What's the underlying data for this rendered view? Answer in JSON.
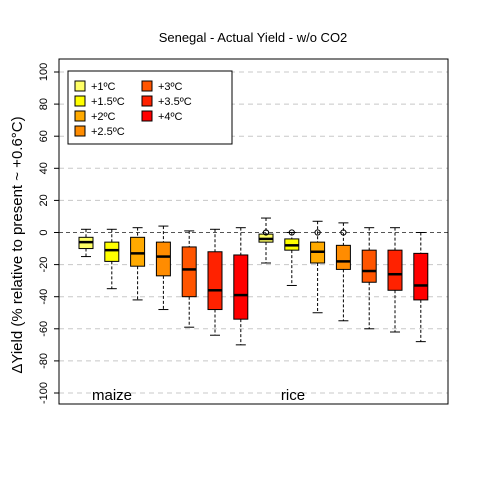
{
  "chart_data": {
    "type": "box",
    "title": "Senegal - Actual Yield - w/o CO2",
    "ylabel": "ΔYield (% relative to present ~ +0.6°C)",
    "xlabel": "",
    "ylim": [
      -100,
      100
    ],
    "yticks": [
      100,
      80,
      60,
      40,
      20,
      0,
      -20,
      -40,
      -60,
      -80,
      -100
    ],
    "grid": "horizontal dashed",
    "legend_position": "top-left",
    "groups": [
      "maize",
      "rice"
    ],
    "series": [
      {
        "name": "+1ºC",
        "color": "#FFFF66"
      },
      {
        "name": "+1.5ºC",
        "color": "#FFFF00"
      },
      {
        "name": "+2ºC",
        "color": "#FFAA00"
      },
      {
        "name": "+2.5ºC",
        "color": "#FF8C00"
      },
      {
        "name": "+3ºC",
        "color": "#FF5500"
      },
      {
        "name": "+3.5ºC",
        "color": "#FF2200"
      },
      {
        "name": "+4ºC",
        "color": "#FF0000"
      }
    ],
    "boxes": [
      {
        "group": "maize",
        "series": "+1ºC",
        "whisker_low": -15,
        "q1": -10,
        "median": -6,
        "q3": -3,
        "whisker_high": 2,
        "outliers": []
      },
      {
        "group": "maize",
        "series": "+1.5ºC",
        "whisker_low": -35,
        "q1": -18,
        "median": -11,
        "q3": -6,
        "whisker_high": 2,
        "outliers": []
      },
      {
        "group": "maize",
        "series": "+2ºC",
        "whisker_low": -42,
        "q1": -21,
        "median": -13,
        "q3": -3,
        "whisker_high": 3,
        "outliers": []
      },
      {
        "group": "maize",
        "series": "+2.5ºC",
        "whisker_low": -48,
        "q1": -27,
        "median": -15,
        "q3": -6,
        "whisker_high": 4,
        "outliers": []
      },
      {
        "group": "maize",
        "series": "+3ºC",
        "whisker_low": -59,
        "q1": -40,
        "median": -23,
        "q3": -9,
        "whisker_high": 1,
        "outliers": []
      },
      {
        "group": "maize",
        "series": "+3.5ºC",
        "whisker_low": -64,
        "q1": -48,
        "median": -36,
        "q3": -12,
        "whisker_high": 2,
        "outliers": []
      },
      {
        "group": "maize",
        "series": "+4ºC",
        "whisker_low": -70,
        "q1": -54,
        "median": -39,
        "q3": -14,
        "whisker_high": 3,
        "outliers": []
      },
      {
        "group": "rice",
        "series": "+1ºC",
        "whisker_low": -19,
        "q1": -6,
        "median": -4,
        "q3": -1,
        "whisker_high": 9,
        "outliers": [
          0
        ]
      },
      {
        "group": "rice",
        "series": "+1.5ºC",
        "whisker_low": -33,
        "q1": -11,
        "median": -8,
        "q3": -4,
        "whisker_high": 0,
        "outliers": [
          0
        ]
      },
      {
        "group": "rice",
        "series": "+2ºC",
        "whisker_low": -50,
        "q1": -19,
        "median": -12,
        "q3": -6,
        "whisker_high": 7,
        "outliers": [
          0
        ]
      },
      {
        "group": "rice",
        "series": "+2.5ºC",
        "whisker_low": -55,
        "q1": -23,
        "median": -18,
        "q3": -8,
        "whisker_high": 6,
        "outliers": [
          0
        ]
      },
      {
        "group": "rice",
        "series": "+3ºC",
        "whisker_low": -60,
        "q1": -31,
        "median": -24,
        "q3": -11,
        "whisker_high": 3,
        "outliers": []
      },
      {
        "group": "rice",
        "series": "+3.5ºC",
        "whisker_low": -62,
        "q1": -36,
        "median": -26,
        "q3": -11,
        "whisker_high": 3,
        "outliers": []
      },
      {
        "group": "rice",
        "series": "+4ºC",
        "whisker_low": -68,
        "q1": -42,
        "median": -33,
        "q3": -13,
        "whisker_high": 0,
        "outliers": []
      }
    ]
  }
}
